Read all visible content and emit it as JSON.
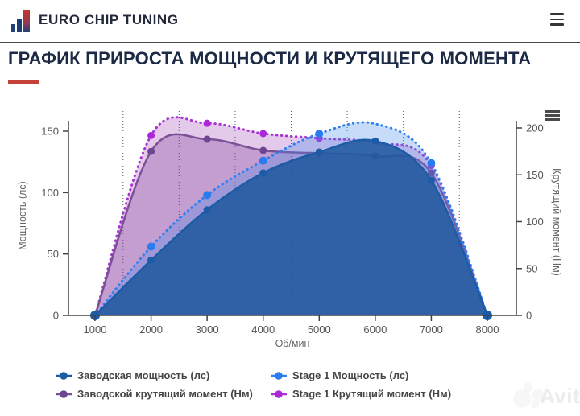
{
  "header": {
    "brand": "EURO CHIP TUNING",
    "menu_icon": "hamburger"
  },
  "title": {
    "text": "ГРАФИК ПРИРОСТА МОЩНОСТИ И КРУТЯЩЕГО МОМЕНТА",
    "accent_color": "#c54336"
  },
  "watermark": {
    "text": "Avito"
  },
  "chart_data": {
    "type": "line",
    "x": [
      1000,
      2000,
      3000,
      4000,
      5000,
      6000,
      7000,
      8000
    ],
    "xlabel": "Об/мин",
    "minor_gridlines_x": [
      1500,
      2500,
      3500,
      4500,
      5500,
      6500,
      7500
    ],
    "grid": "vertical-dotted",
    "legend_position": "bottom",
    "axes": {
      "left": {
        "label": "Мощность (лс)",
        "ticks": [
          0,
          50,
          100,
          150
        ],
        "max": 150
      },
      "right": {
        "label": "Крутящий момент (Нм)",
        "ticks": [
          0,
          50,
          100,
          150,
          200
        ],
        "max": 200
      }
    },
    "series": [
      {
        "name": "Заводская мощность (лс)",
        "axis": "left",
        "line": "solid",
        "z": 3,
        "color": "#1c5ca6",
        "marker_color": "#1c5ca6",
        "marker_r": 4.5,
        "fill": "rgba(32,88,158,0.87)",
        "values": [
          0,
          45,
          86,
          116,
          133,
          142,
          110,
          0
        ],
        "point_markers": [
          1,
          1,
          1,
          1,
          1,
          1,
          1,
          1
        ]
      },
      {
        "name": "Stage 1 Мощность (лс)",
        "axis": "left",
        "line": "dotted",
        "z": 2,
        "color": "#2e7ff0",
        "marker_color": "#2a7bf0",
        "marker_r": 5,
        "fill": "rgba(70,140,235,0.30)",
        "values": [
          0,
          56,
          98,
          126,
          148,
          156,
          124,
          0
        ],
        "point_markers": [
          1,
          1,
          1,
          1,
          1,
          0,
          1,
          1
        ]
      },
      {
        "name": "Заводской крутящий момент (Нм)",
        "axis": "right",
        "line": "solid",
        "z": 1,
        "color": "#7b5096",
        "marker_color": "#6d4590",
        "marker_r": 4.5,
        "fill": "rgba(125,60,150,0.30)",
        "values": [
          0,
          175,
          188,
          176,
          173,
          170,
          152,
          0
        ],
        "point_markers": [
          1,
          1,
          1,
          1,
          1,
          1,
          1,
          1
        ]
      },
      {
        "name": "Stage 1 Крутящий момент (Нм)",
        "axis": "right",
        "line": "dotted",
        "z": 0,
        "color": "#a832d4",
        "marker_color": "#ab28da",
        "marker_r": 4.5,
        "fill": "rgba(155,60,180,0.28)",
        "values": [
          0,
          192,
          205,
          194,
          189,
          184,
          160,
          0
        ],
        "point_markers": [
          1,
          1,
          1,
          1,
          1,
          0,
          1,
          1
        ]
      }
    ]
  }
}
